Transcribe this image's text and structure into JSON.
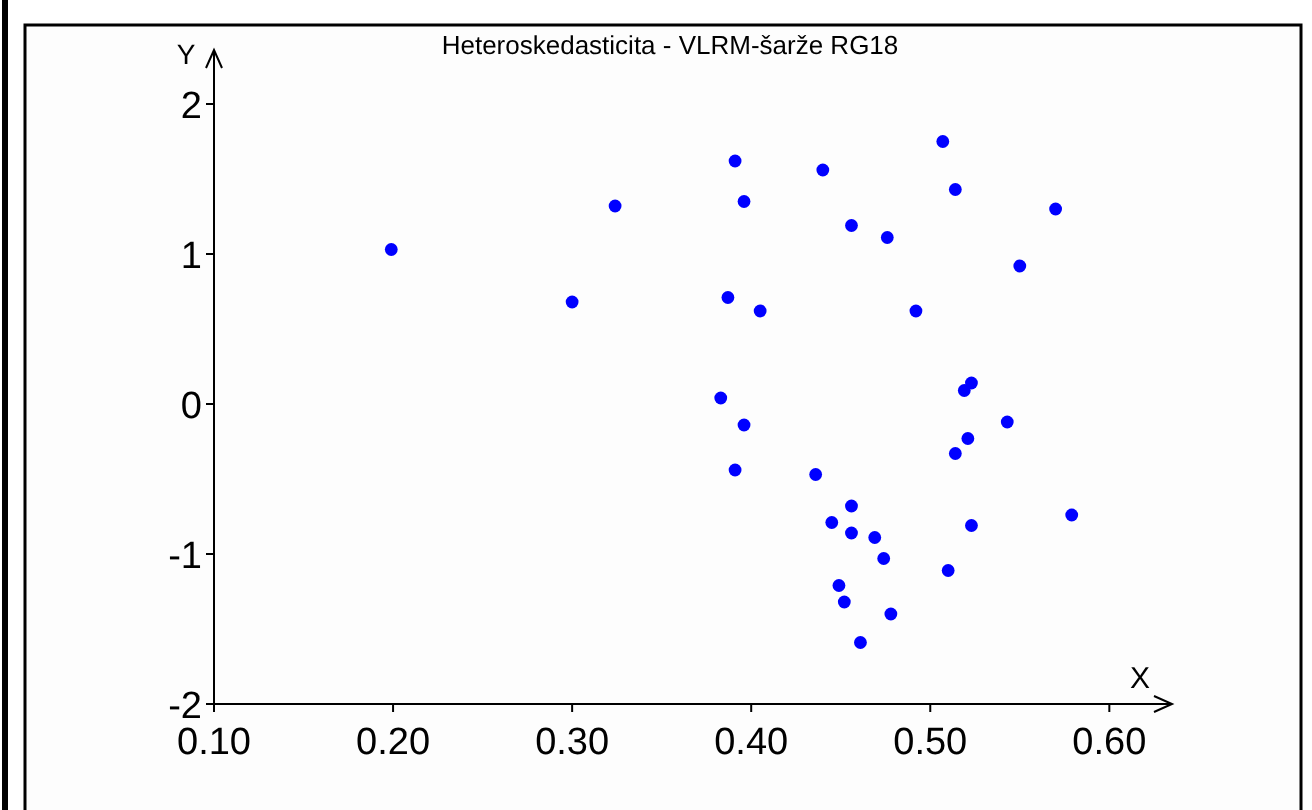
{
  "chart_data": {
    "type": "scatter",
    "title": "Heteroskedasticita - VLRM-šarže RG18",
    "xlabel": "X",
    "ylabel": "Y",
    "marker": "circle",
    "grid": false,
    "x": [
      0.199,
      0.3,
      0.324,
      0.391,
      0.396,
      0.387,
      0.405,
      0.383,
      0.396,
      0.391,
      0.44,
      0.456,
      0.476,
      0.507,
      0.514,
      0.57,
      0.55,
      0.492,
      0.519,
      0.523,
      0.543,
      0.521,
      0.514,
      0.436,
      0.456,
      0.445,
      0.456,
      0.469,
      0.474,
      0.523,
      0.579,
      0.51,
      0.449,
      0.452,
      0.478,
      0.461
    ],
    "series": [
      {
        "color": "#0000ff",
        "values": [
          1.03,
          0.68,
          1.32,
          1.62,
          1.35,
          0.71,
          0.62,
          0.04,
          -0.14,
          -0.44,
          1.56,
          1.19,
          1.11,
          1.75,
          1.43,
          1.3,
          0.92,
          0.62,
          0.09,
          0.14,
          -0.12,
          -0.23,
          -0.33,
          -0.47,
          -0.68,
          -0.79,
          -0.86,
          -0.89,
          -1.03,
          -0.81,
          -0.74,
          -1.11,
          -1.21,
          -1.32,
          -1.4,
          -1.59
        ]
      }
    ],
    "xlim": [
      0.1,
      0.635
    ],
    "ylim": [
      -2,
      2.36
    ],
    "xticks": [
      {
        "value": 0.1,
        "label": "0.10"
      },
      {
        "value": 0.2,
        "label": "0.20"
      },
      {
        "value": 0.3,
        "label": "0.30"
      },
      {
        "value": 0.4,
        "label": "0.40"
      },
      {
        "value": 0.5,
        "label": "0.50"
      },
      {
        "value": 0.6,
        "label": "0.60"
      }
    ],
    "yticks": [
      -2,
      -1,
      0,
      1,
      2
    ]
  }
}
